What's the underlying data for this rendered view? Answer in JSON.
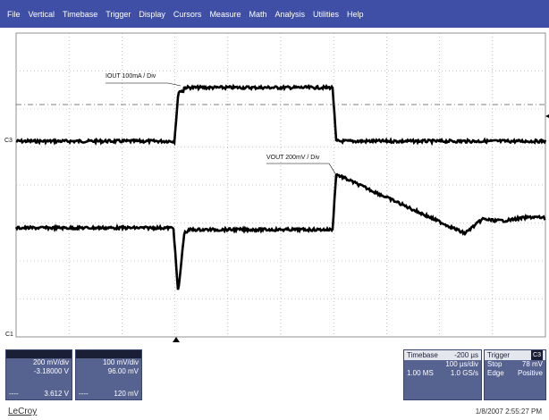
{
  "menu": [
    "File",
    "Vertical",
    "Timebase",
    "Trigger",
    "Display",
    "Cursors",
    "Measure",
    "Math",
    "Analysis",
    "Utilities",
    "Help"
  ],
  "traces": {
    "iout_label": "IOUT 100mA / Div",
    "vout_label": "VOUT 200mV / Div",
    "c3_marker": "C3",
    "c1_marker": "C1"
  },
  "channels": [
    {
      "scale": "200 mV/div",
      "offset": "-3.18000 V",
      "footer_left": "----",
      "footer_right": "3.612 V"
    },
    {
      "scale": "100 mV/div",
      "offset": "96.00 mV",
      "footer_left": "----",
      "footer_right": "120 mV"
    }
  ],
  "timebase": {
    "title": "Timebase",
    "delay": "-200 µs",
    "per_div": "100 µs/div",
    "samples": "1.00 MS",
    "rate": "1.0 GS/s"
  },
  "trigger": {
    "title": "Trigger",
    "channel": "C3",
    "mode": "Stop",
    "level": "78 mV",
    "type": "Edge",
    "slope": "Positive"
  },
  "brand": "LeCroy",
  "timestamp": "1/8/2007 2:55:27 PM",
  "colors": {
    "menubar": "#3f4fa5",
    "panel": "#56628f"
  }
}
